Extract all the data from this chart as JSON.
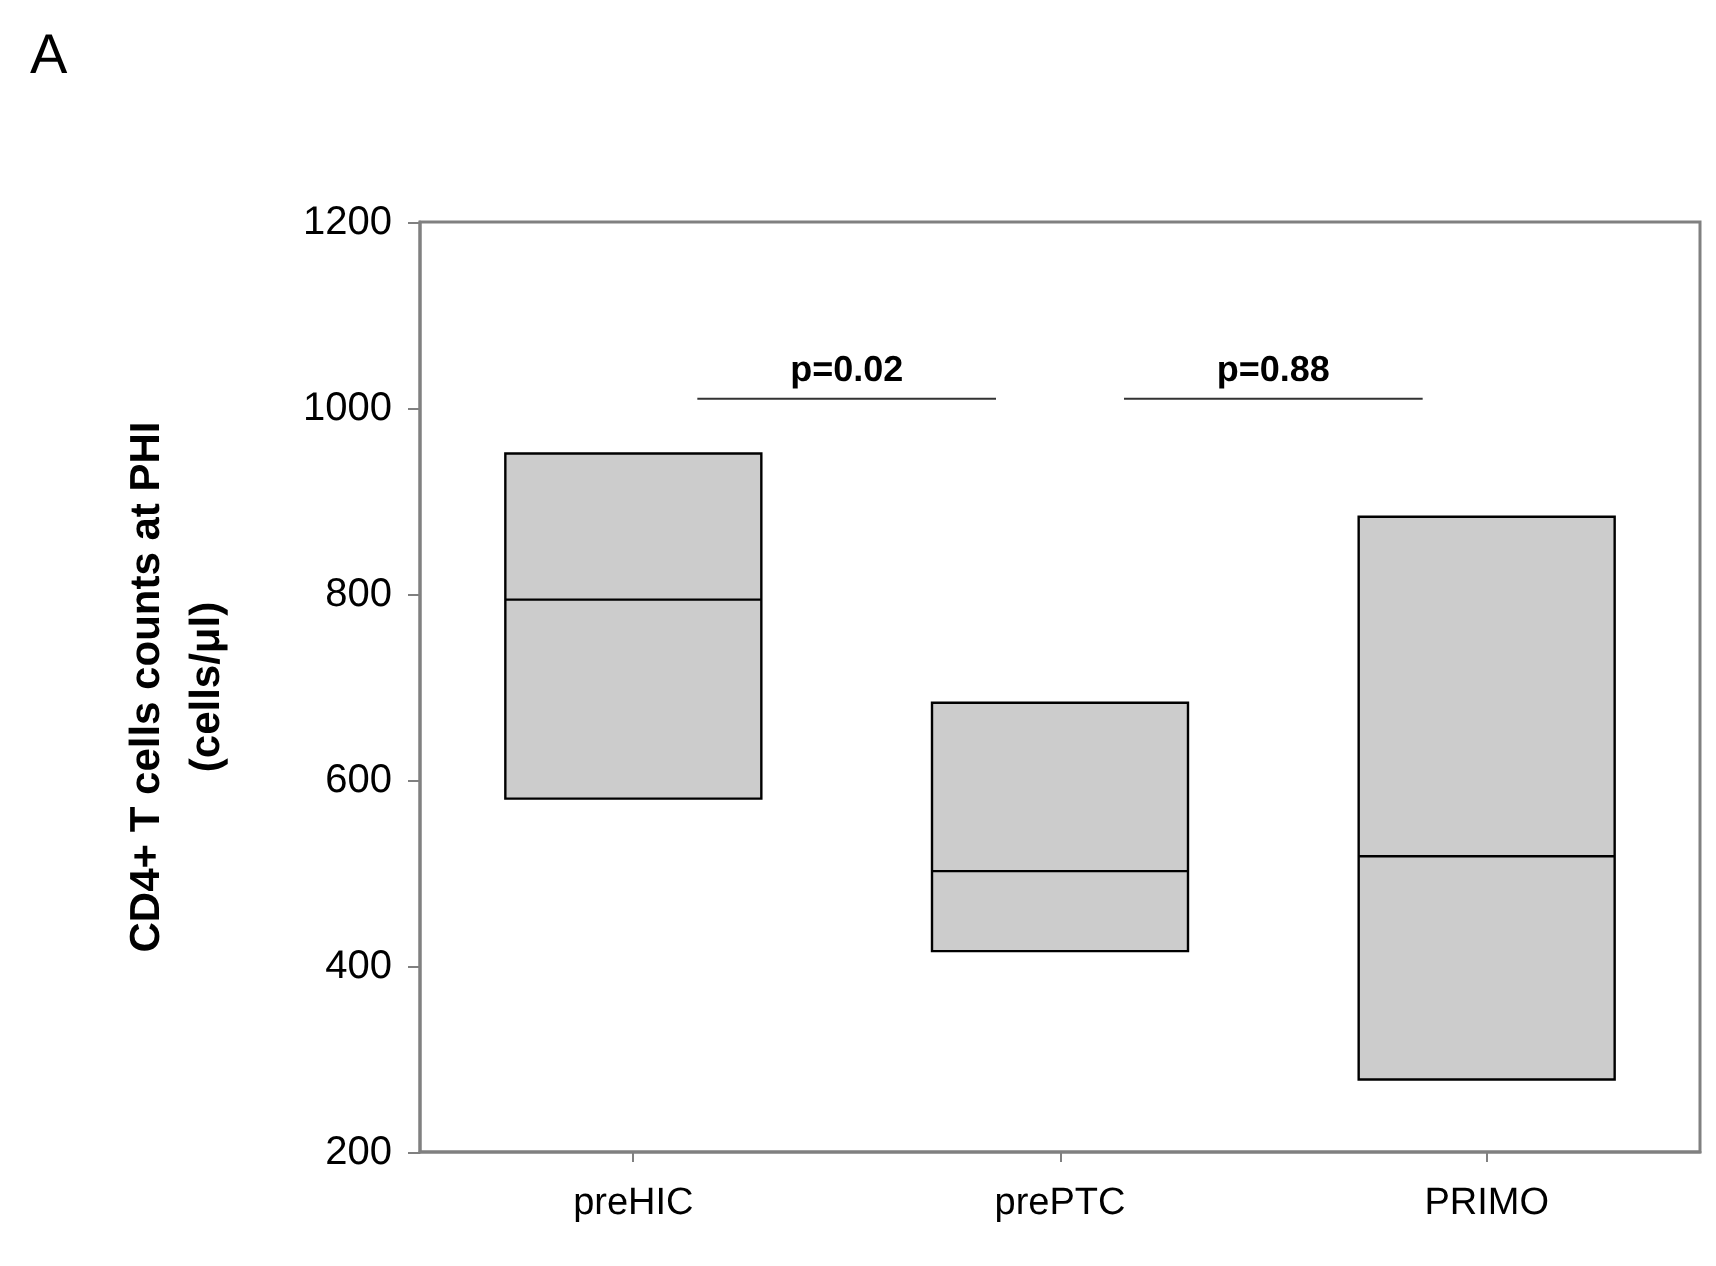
{
  "chart_data": {
    "type": "box",
    "title": "A",
    "ylabel": "CD4+ T cells counts at PHI\n(cells/μl)",
    "categories": [
      "preHIC",
      "prePTC",
      "PRIMO"
    ],
    "boxes": [
      {
        "low": 580,
        "q1": 580,
        "median": 794,
        "q3": 951,
        "high": 951
      },
      {
        "low": 416,
        "q1": 416,
        "median": 502,
        "q3": 683,
        "high": 683
      },
      {
        "low": 278,
        "q1": 278,
        "median": 518,
        "q3": 883,
        "high": 883
      }
    ],
    "color": "#cccccc",
    "ylim": [
      200,
      1200
    ],
    "yticks": [
      200,
      400,
      600,
      800,
      1000,
      1200
    ],
    "grid": false,
    "annotations": [
      "p=0.02",
      "p=0.88"
    ]
  }
}
